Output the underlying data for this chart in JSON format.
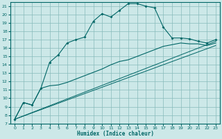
{
  "xlabel": "Humidex (Indice chaleur)",
  "bg_color": "#cce8e8",
  "grid_color": "#88bbbb",
  "line_color": "#006666",
  "xlim": [
    -0.5,
    23.5
  ],
  "ylim": [
    7,
    21.5
  ],
  "xticks": [
    0,
    1,
    2,
    3,
    4,
    5,
    6,
    7,
    8,
    9,
    10,
    11,
    12,
    13,
    14,
    15,
    16,
    17,
    18,
    19,
    20,
    21,
    22,
    23
  ],
  "yticks": [
    7,
    8,
    9,
    10,
    11,
    12,
    13,
    14,
    15,
    16,
    17,
    18,
    19,
    20,
    21
  ],
  "main_line_x": [
    0,
    1,
    2,
    3,
    4,
    5,
    6,
    7,
    8,
    9,
    10,
    11,
    12,
    13,
    14,
    15,
    16,
    17,
    18,
    19,
    20,
    21,
    22,
    23
  ],
  "main_line_y": [
    7.5,
    9.5,
    9.2,
    11.2,
    14.3,
    15.2,
    16.6,
    17.0,
    17.3,
    19.2,
    20.1,
    19.7,
    20.5,
    21.3,
    21.3,
    21.0,
    20.8,
    18.5,
    17.2,
    17.2,
    17.1,
    16.8,
    16.6,
    17.0
  ],
  "line2_x": [
    0,
    1,
    2,
    3,
    4,
    5,
    6,
    7,
    8,
    9,
    10,
    11,
    12,
    13,
    14,
    15,
    16,
    17,
    18,
    19,
    20,
    21,
    22,
    23
  ],
  "line2_y": [
    7.5,
    9.5,
    9.2,
    11.2,
    11.5,
    11.6,
    11.9,
    12.3,
    12.7,
    13.1,
    13.5,
    14.0,
    14.4,
    14.6,
    15.0,
    15.4,
    15.8,
    16.2,
    16.4,
    16.6,
    16.5,
    16.5,
    16.3,
    16.6
  ],
  "line3_x": [
    0,
    23
  ],
  "line3_y": [
    7.5,
    16.3
  ],
  "line4_x": [
    0,
    23
  ],
  "line4_y": [
    7.5,
    16.8
  ]
}
